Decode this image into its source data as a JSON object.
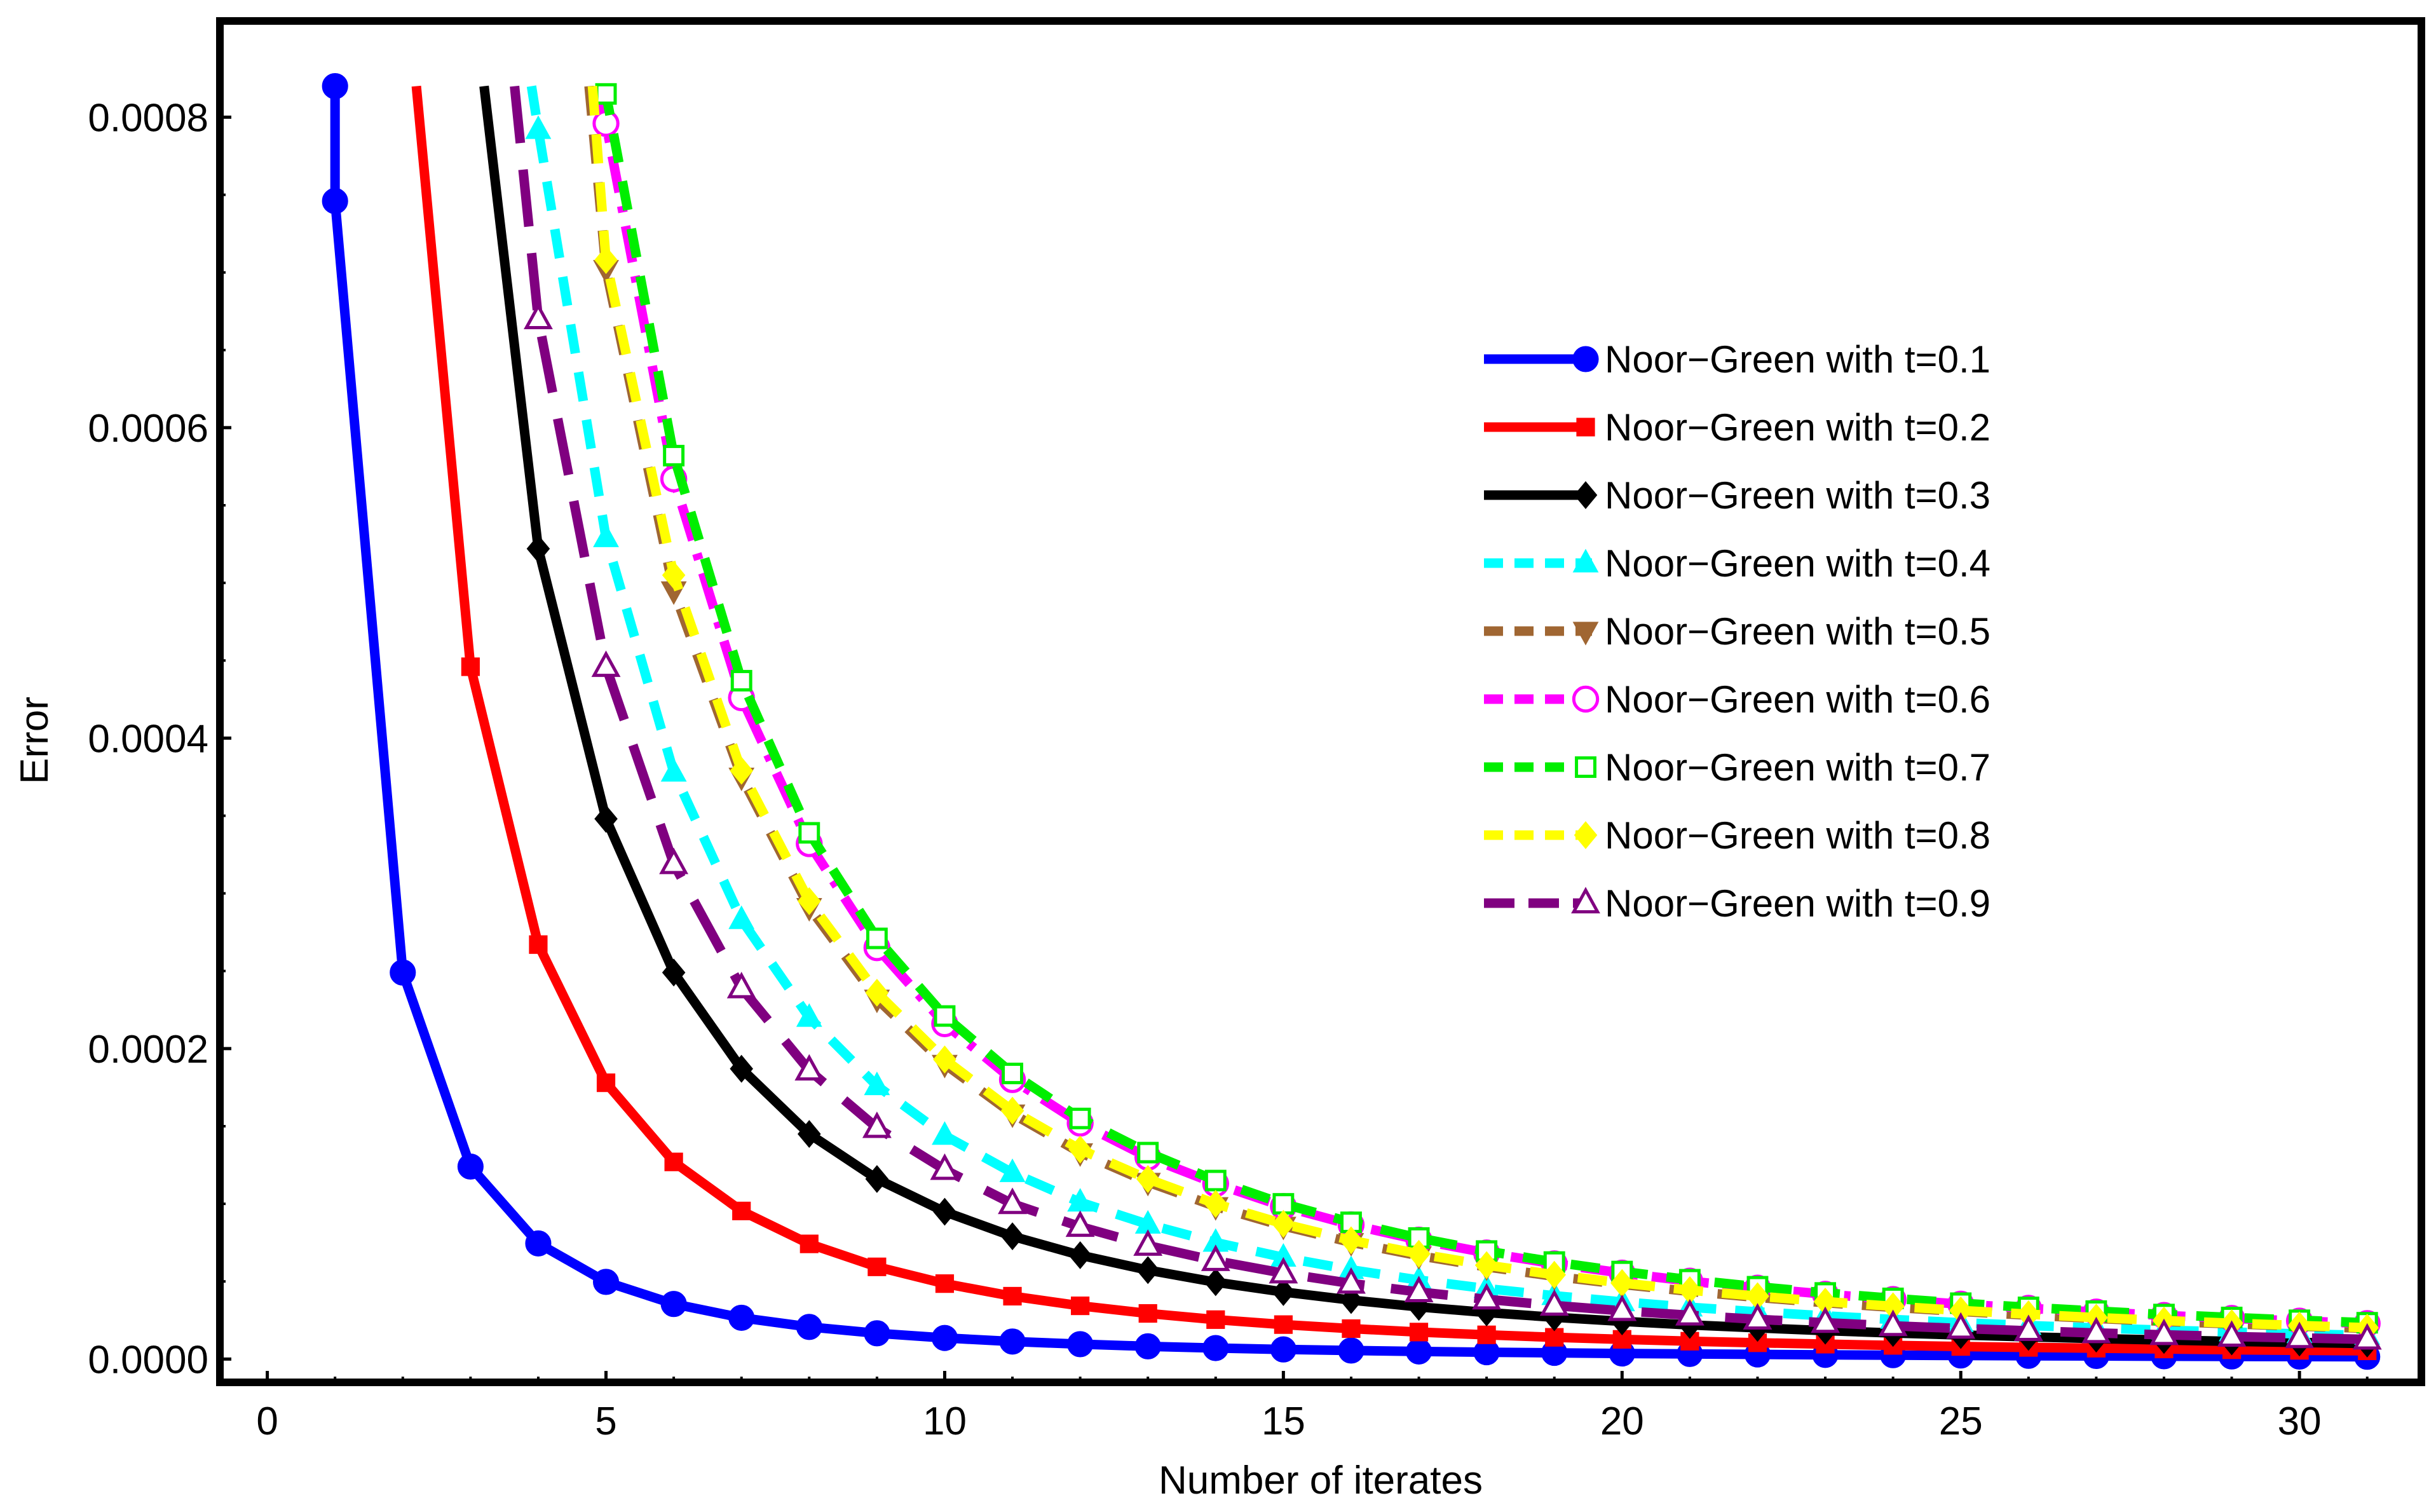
{
  "chart_data": {
    "type": "line",
    "title": "",
    "xlabel": "Number of iterates",
    "ylabel": "Error",
    "xlim": [
      -0.7,
      31.8
    ],
    "ylim": [
      -1.5e-05,
      0.000862
    ],
    "clip_max": 0.00082,
    "xticks": [
      0,
      5,
      10,
      15,
      20,
      25,
      30
    ],
    "xtick_labels": [
      "0",
      "5",
      "10",
      "15",
      "20",
      "25",
      "30"
    ],
    "yticks": [
      0,
      0.0002,
      0.0004,
      0.0006,
      0.0008
    ],
    "ytick_labels": [
      "0.0000",
      "0.0002",
      "0.0004",
      "0.0006",
      "0.0008"
    ],
    "grid": false,
    "legend_position": "right",
    "series": [
      {
        "name": "Noor−Green with t=0.1",
        "color": "#0000ff",
        "marker": "circle",
        "dash": "solid",
        "entry_x": 1,
        "x": [
          1,
          2,
          3,
          4,
          5,
          6,
          7,
          8,
          9,
          10,
          11,
          12,
          13,
          14,
          15,
          16,
          17,
          18,
          19,
          20,
          21,
          22,
          23,
          24,
          25,
          26,
          27,
          28,
          29,
          30,
          31
        ],
        "values": [
          0.000746,
          0.000249,
          0.000124,
          7.45e-05,
          4.97e-05,
          3.55e-05,
          2.66e-05,
          2.07e-05,
          1.66e-05,
          1.36e-05,
          1.13e-05,
          9.6e-06,
          8.2e-06,
          7.1e-06,
          6.2e-06,
          5.5e-06,
          4.9e-06,
          4.4e-06,
          4e-06,
          3.6e-06,
          3.3e-06,
          3e-06,
          2.7e-06,
          2.5e-06,
          2.3e-06,
          2.1e-06,
          2e-06,
          1.8e-06,
          1.7e-06,
          1.6e-06,
          1.5e-06
        ]
      },
      {
        "name": "Noor−Green with t=0.2",
        "color": "#ff0000",
        "marker": "square",
        "dash": "solid",
        "entry_x": 2.2,
        "x": [
          3,
          4,
          5,
          6,
          7,
          8,
          9,
          10,
          11,
          12,
          13,
          14,
          15,
          16,
          17,
          18,
          19,
          20,
          21,
          22,
          23,
          24,
          25,
          26,
          27,
          28,
          29,
          30,
          31
        ],
        "values": [
          0.000446,
          0.000267,
          0.000178,
          0.000127,
          9.54e-05,
          7.42e-05,
          5.94e-05,
          4.86e-05,
          4.05e-05,
          3.43e-05,
          2.94e-05,
          2.54e-05,
          2.22e-05,
          1.96e-05,
          1.74e-05,
          1.56e-05,
          1.4e-05,
          1.27e-05,
          1.15e-05,
          1.05e-05,
          9.6e-06,
          8.8e-06,
          8.1e-06,
          7.5e-06,
          7e-06,
          6.5e-06,
          6e-06,
          5.6e-06,
          5.3e-06
        ]
      },
      {
        "name": "Noor−Green with t=0.3",
        "color": "#000000",
        "marker": "diamond",
        "dash": "solid",
        "entry_x": 3.2,
        "x": [
          4,
          5,
          6,
          7,
          8,
          9,
          10,
          11,
          12,
          13,
          14,
          15,
          16,
          17,
          18,
          19,
          20,
          21,
          22,
          23,
          24,
          25,
          26,
          27,
          28,
          29,
          30,
          31
        ],
        "values": [
          0.000522,
          0.000348,
          0.000249,
          0.000187,
          0.000145,
          0.000116,
          9.49e-05,
          7.91e-05,
          6.69e-05,
          5.73e-05,
          4.95e-05,
          4.32e-05,
          3.8e-05,
          3.36e-05,
          3e-05,
          2.69e-05,
          2.43e-05,
          2.2e-05,
          2.01e-05,
          1.83e-05,
          1.68e-05,
          1.55e-05,
          1.43e-05,
          1.32e-05,
          1.23e-05,
          1.14e-05,
          1.07e-05,
          1e-05
        ]
      },
      {
        "name": "Noor−Green with t=0.4",
        "color": "#00ffff",
        "marker": "triangle",
        "dash": "dashed",
        "entry_x": 3.9,
        "x": [
          4,
          5,
          6,
          7,
          8,
          9,
          10,
          11,
          12,
          13,
          14,
          15,
          16,
          17,
          18,
          19,
          20,
          21,
          22,
          23,
          24,
          25,
          26,
          27,
          28,
          29,
          30,
          31
        ],
        "values": [
          0.000792,
          0.000529,
          0.000378,
          0.000283,
          0.00022,
          0.000176,
          0.000144,
          0.00012,
          0.000101,
          8.68e-05,
          7.51e-05,
          6.55e-05,
          5.75e-05,
          5.09e-05,
          4.54e-05,
          4.08e-05,
          3.68e-05,
          3.34e-05,
          3.04e-05,
          2.78e-05,
          2.55e-05,
          2.34e-05,
          2.16e-05,
          2e-05,
          1.86e-05,
          1.74e-05,
          1.62e-05,
          1.52e-05
        ]
      },
      {
        "name": "Noor−Green with t=0.5",
        "color": "#a06632",
        "marker": "triangle-down",
        "dash": "dashed",
        "entry_x": 4.75,
        "x": [
          5,
          6,
          7,
          8,
          9,
          10,
          11,
          12,
          13,
          14,
          15,
          16,
          17,
          18,
          19,
          20,
          21,
          22,
          23,
          24,
          25,
          26,
          27,
          28,
          29,
          30,
          31
        ],
        "values": [
          0.000702,
          0.000495,
          0.000375,
          0.000291,
          0.000232,
          0.00019,
          0.000158,
          0.000133,
          0.000114,
          9.83e-05,
          8.57e-05,
          7.52e-05,
          6.66e-05,
          5.94e-05,
          5.33e-05,
          4.81e-05,
          4.36e-05,
          3.97e-05,
          3.63e-05,
          3.33e-05,
          3.07e-05,
          2.83e-05,
          2.62e-05,
          2.43e-05,
          2.27e-05,
          2.12e-05,
          1.98e-05
        ]
      },
      {
        "name": "Noor−Green with t=0.6",
        "color": "#ff00ff",
        "marker": "circle-open",
        "dash": "dashdot",
        "entry_x": 4.9,
        "x": [
          5,
          6,
          7,
          8,
          9,
          10,
          11,
          12,
          13,
          14,
          15,
          16,
          17,
          18,
          19,
          20,
          21,
          22,
          23,
          24,
          25,
          26,
          27,
          28,
          29,
          30,
          31
        ],
        "values": [
          0.000796,
          0.000567,
          0.000426,
          0.000332,
          0.000265,
          0.000216,
          0.00018,
          0.000152,
          0.00013,
          0.000113,
          9.83e-05,
          8.65e-05,
          7.67e-05,
          6.84e-05,
          6.14e-05,
          5.54e-05,
          5.02e-05,
          4.57e-05,
          4.18e-05,
          3.84e-05,
          3.54e-05,
          3.27e-05,
          3.03e-05,
          2.81e-05,
          2.62e-05,
          2.45e-05,
          2.29e-05
        ]
      },
      {
        "name": "Noor−Green with t=0.7",
        "color": "#00ee00",
        "marker": "square-open",
        "dash": "dashed",
        "entry_x": 5,
        "x": [
          5,
          6,
          7,
          8,
          9,
          10,
          11,
          12,
          13,
          14,
          15,
          16,
          17,
          18,
          19,
          20,
          21,
          22,
          23,
          24,
          25,
          26,
          27,
          28,
          29,
          30,
          31
        ],
        "values": [
          0.000815,
          0.000582,
          0.000437,
          0.000339,
          0.000271,
          0.000221,
          0.000184,
          0.000155,
          0.000133,
          0.000115,
          0.0001,
          8.81e-05,
          7.8e-05,
          6.96e-05,
          6.25e-05,
          5.64e-05,
          5.11e-05,
          4.66e-05,
          4.26e-05,
          3.91e-05,
          3.6e-05,
          3.33e-05,
          3.09e-05,
          2.87e-05,
          2.68e-05,
          2.5e-05,
          2.34e-05
        ]
      },
      {
        "name": "Noor−Green with t=0.8",
        "color": "#ffff00",
        "marker": "diamond",
        "dash": "dashed",
        "entry_x": 4.8,
        "x": [
          5,
          6,
          7,
          8,
          9,
          10,
          11,
          12,
          13,
          14,
          15,
          16,
          17,
          18,
          19,
          20,
          21,
          22,
          23,
          24,
          25,
          26,
          27,
          28,
          29,
          30,
          31
        ],
        "values": [
          0.000708,
          0.000505,
          0.000379,
          0.000295,
          0.000236,
          0.000193,
          0.00016,
          0.000135,
          0.000116,
          0.0001,
          8.71e-05,
          7.65e-05,
          6.78e-05,
          6.05e-05,
          5.43e-05,
          4.9e-05,
          4.44e-05,
          4.05e-05,
          3.7e-05,
          3.4e-05,
          3.13e-05,
          2.89e-05,
          2.67e-05,
          2.48e-05,
          2.31e-05,
          2.16e-05,
          2.02e-05
        ]
      },
      {
        "name": "Noor−Green with t=0.9",
        "color": "#800080",
        "marker": "triangle-open",
        "dash": "longdash",
        "entry_x": 3.65,
        "x": [
          4,
          5,
          6,
          7,
          8,
          9,
          10,
          11,
          12,
          13,
          14,
          15,
          16,
          17,
          18,
          19,
          20,
          21,
          22,
          23,
          24,
          25,
          26,
          27,
          28,
          29,
          30,
          31
        ],
        "values": [
          0.00067,
          0.000446,
          0.000319,
          0.000239,
          0.000186,
          0.000149,
          0.000122,
          0.0001,
          8.53e-05,
          7.31e-05,
          6.33e-05,
          5.53e-05,
          4.87e-05,
          4.32e-05,
          3.85e-05,
          3.45e-05,
          3.11e-05,
          2.82e-05,
          2.56e-05,
          2.34e-05,
          2.14e-05,
          1.97e-05,
          1.82e-05,
          1.68e-05,
          1.56e-05,
          1.45e-05,
          1.36e-05,
          1.27e-05
        ]
      }
    ]
  }
}
